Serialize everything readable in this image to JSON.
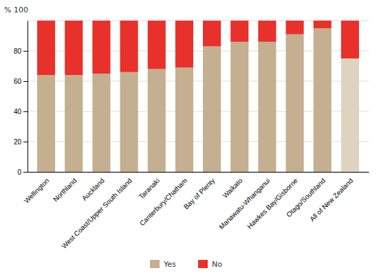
{
  "chart_data": {
    "type": "bar",
    "stacked": true,
    "ylabel": "% 100",
    "categories": [
      "Wellington",
      "Northland",
      "Auckland",
      "West Coast/Upper South Island",
      "Taranaki",
      "Canterbury/Chatham",
      "Bay of Plenty",
      "Waikato",
      "Manawatu-Whanganui",
      "Hawkes Bay/Gisborne",
      "Otago/Southland",
      "All of New Zealand"
    ],
    "series": [
      {
        "name": "Yes",
        "color": "#C4AF90",
        "colors": [
          "#C4AF90",
          "#C4AF90",
          "#C4AF90",
          "#C4AF90",
          "#C4AF90",
          "#C4AF90",
          "#C4AF90",
          "#C4AF90",
          "#C4AF90",
          "#C4AF90",
          "#C4AF90",
          "#DDD3BE"
        ],
        "values": [
          64,
          64,
          65,
          66,
          68,
          69,
          83,
          86,
          86,
          91,
          95,
          75
        ]
      },
      {
        "name": "No",
        "color": "#E8312A",
        "values": [
          36,
          36,
          35,
          34,
          32,
          31,
          17,
          14,
          14,
          9,
          5,
          25
        ]
      }
    ],
    "ylim": [
      0,
      100
    ],
    "yticks": [
      0,
      20,
      40,
      60,
      80
    ],
    "grid": true,
    "legend": "bottom"
  }
}
